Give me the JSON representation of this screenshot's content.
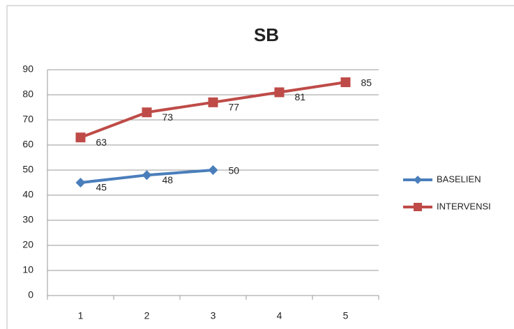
{
  "chart_data": {
    "type": "line",
    "title": "SB",
    "categories": [
      "1",
      "2",
      "3",
      "4",
      "5"
    ],
    "series": [
      {
        "name": "BASELIEN",
        "color": "#4a7ebb",
        "values": [
          45,
          48,
          50,
          null,
          null
        ]
      },
      {
        "name": "INTERVENSI",
        "color": "#be4b48",
        "values": [
          63,
          73,
          77,
          81,
          85
        ]
      }
    ],
    "ylim": [
      0,
      90
    ],
    "yticks": [
      0,
      10,
      20,
      30,
      40,
      50,
      60,
      70,
      80,
      90
    ],
    "grid": true,
    "legend": "right"
  }
}
